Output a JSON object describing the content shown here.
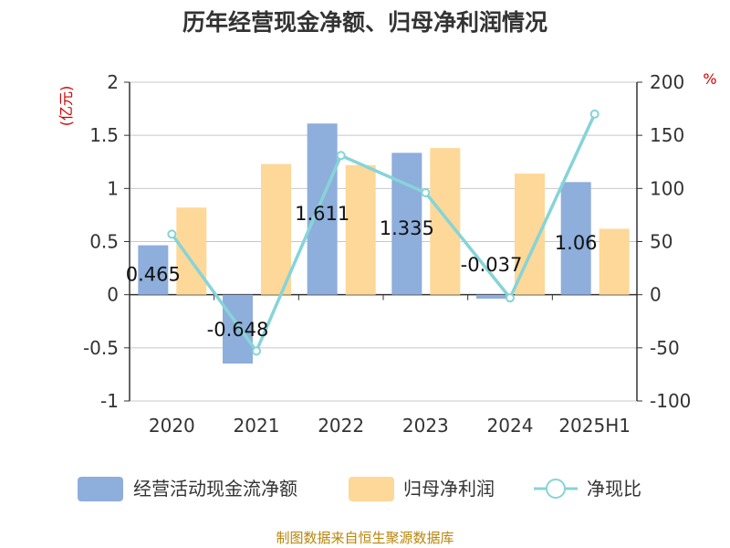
{
  "chart_data": {
    "type": "bar",
    "title": "历年经营现金净额、归母净利润情况",
    "categories": [
      "2020",
      "2021",
      "2022",
      "2023",
      "2024",
      "2025H1"
    ],
    "series": [
      {
        "name": "经营活动现金流净额",
        "type": "bar",
        "axis": "left",
        "color": "#8eaedb",
        "values": [
          0.465,
          -0.648,
          1.611,
          1.335,
          -0.037,
          1.06
        ],
        "labels": [
          "0.465",
          "-0.648",
          "1.611",
          "1.335",
          "-0.037",
          "1.06"
        ]
      },
      {
        "name": "归母净利润",
        "type": "bar",
        "axis": "left",
        "color": "#fdd898",
        "values": [
          0.82,
          1.23,
          1.22,
          1.38,
          1.14,
          0.62
        ]
      },
      {
        "name": "净现比",
        "type": "line",
        "axis": "right",
        "color": "#86d4d8",
        "values": [
          57,
          -53,
          131,
          96,
          -3,
          170
        ]
      }
    ],
    "yleft": {
      "unit": "(亿元)",
      "min": -1,
      "max": 2,
      "ticks": [
        -1,
        -0.5,
        0,
        0.5,
        1,
        1.5,
        2
      ],
      "tick_labels": [
        "-1",
        "-0.5",
        "0",
        "0.5",
        "1",
        "1.5",
        "2"
      ]
    },
    "yright": {
      "unit": "%",
      "min": -100,
      "max": 200,
      "ticks": [
        -100,
        -50,
        0,
        50,
        100,
        150,
        200
      ],
      "tick_labels": [
        "-100",
        "-50",
        "0",
        "50",
        "100",
        "150",
        "200"
      ]
    },
    "grid": true,
    "legend_position": "bottom"
  },
  "source": "制图数据来自恒生聚源数据库"
}
